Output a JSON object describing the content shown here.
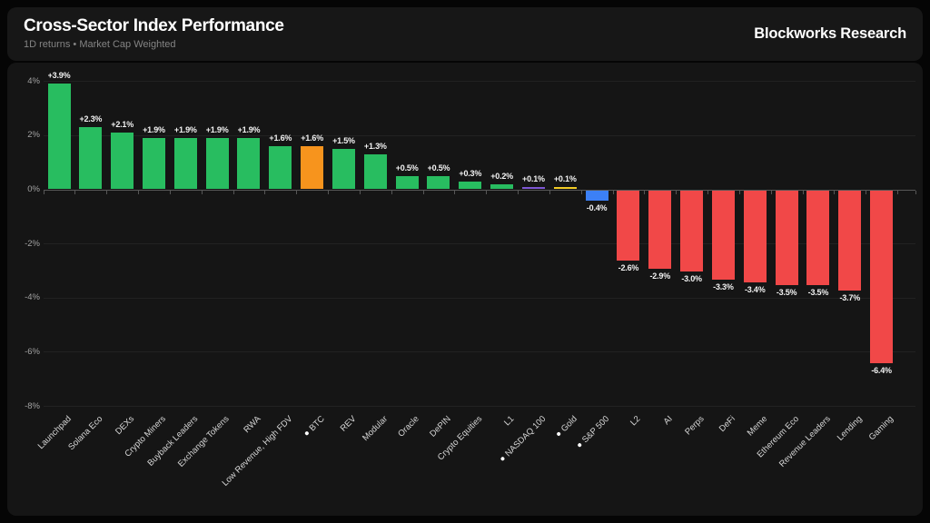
{
  "header": {
    "title": "Cross-Sector Index Performance",
    "subtitle": "1D returns • Market Cap Weighted",
    "brand": "Blockworks Research"
  },
  "colors": {
    "positive": "#28bd60",
    "negative": "#f14848",
    "btc": "#f7941d",
    "nasdaq100": "#7e57d4",
    "gold": "#f3cd26",
    "sp500": "#3c80f6",
    "page_background": "#050505",
    "panel_background": "#171717"
  },
  "chart_data": {
    "type": "bar",
    "title": "Cross-Sector Index Performance",
    "subtitle": "1D returns • Market Cap Weighted",
    "xlabel": "",
    "ylabel": "",
    "ylim": [
      -8,
      4
    ],
    "grid": true,
    "legend_position": "none",
    "yticks": [
      {
        "value": 4,
        "label": "4%"
      },
      {
        "value": 2,
        "label": "2%"
      },
      {
        "value": 0,
        "label": "0%"
      },
      {
        "value": -2,
        "label": "-2%"
      },
      {
        "value": -4,
        "label": "-4%"
      },
      {
        "value": -6,
        "label": "-6%"
      },
      {
        "value": -8,
        "label": "-8%"
      }
    ],
    "bars": [
      {
        "category": "Launchpad",
        "value": 3.9,
        "label": "+3.9%",
        "color": "#28bd60",
        "benchmark": false
      },
      {
        "category": "Solana Eco",
        "value": 2.3,
        "label": "+2.3%",
        "color": "#28bd60",
        "benchmark": false
      },
      {
        "category": "DEXs",
        "value": 2.1,
        "label": "+2.1%",
        "color": "#28bd60",
        "benchmark": false
      },
      {
        "category": "Crypto Miners",
        "value": 1.9,
        "label": "+1.9%",
        "color": "#28bd60",
        "benchmark": false
      },
      {
        "category": "Buyback Leaders",
        "value": 1.9,
        "label": "+1.9%",
        "color": "#28bd60",
        "benchmark": false
      },
      {
        "category": "Exchange Tokens",
        "value": 1.9,
        "label": "+1.9%",
        "color": "#28bd60",
        "benchmark": false
      },
      {
        "category": "RWA",
        "value": 1.9,
        "label": "+1.9%",
        "color": "#28bd60",
        "benchmark": false
      },
      {
        "category": "Low Revenue, High FDV",
        "value": 1.6,
        "label": "+1.6%",
        "color": "#28bd60",
        "benchmark": false
      },
      {
        "category": "BTC",
        "value": 1.6,
        "label": "+1.6%",
        "color": "#f7941d",
        "benchmark": true
      },
      {
        "category": "REV",
        "value": 1.5,
        "label": "+1.5%",
        "color": "#28bd60",
        "benchmark": false
      },
      {
        "category": "Modular",
        "value": 1.3,
        "label": "+1.3%",
        "color": "#28bd60",
        "benchmark": false
      },
      {
        "category": "Oracle",
        "value": 0.5,
        "label": "+0.5%",
        "color": "#28bd60",
        "benchmark": false
      },
      {
        "category": "DePIN",
        "value": 0.5,
        "label": "+0.5%",
        "color": "#28bd60",
        "benchmark": false
      },
      {
        "category": "Crypto Equities",
        "value": 0.3,
        "label": "+0.3%",
        "color": "#28bd60",
        "benchmark": false
      },
      {
        "category": "L1",
        "value": 0.2,
        "label": "+0.2%",
        "color": "#28bd60",
        "benchmark": false
      },
      {
        "category": "NASDAQ 100",
        "value": 0.1,
        "label": "+0.1%",
        "color": "#7e57d4",
        "benchmark": true
      },
      {
        "category": "Gold",
        "value": 0.1,
        "label": "+0.1%",
        "color": "#f3cd26",
        "benchmark": true
      },
      {
        "category": "S&P 500",
        "value": -0.4,
        "label": "-0.4%",
        "color": "#3c80f6",
        "benchmark": true
      },
      {
        "category": "L2",
        "value": -2.6,
        "label": "-2.6%",
        "color": "#f14848",
        "benchmark": false
      },
      {
        "category": "AI",
        "value": -2.9,
        "label": "-2.9%",
        "color": "#f14848",
        "benchmark": false
      },
      {
        "category": "Perps",
        "value": -3.0,
        "label": "-3.0%",
        "color": "#f14848",
        "benchmark": false
      },
      {
        "category": "DeFi",
        "value": -3.3,
        "label": "-3.3%",
        "color": "#f14848",
        "benchmark": false
      },
      {
        "category": "Meme",
        "value": -3.4,
        "label": "-3.4%",
        "color": "#f14848",
        "benchmark": false
      },
      {
        "category": "Ethereum Eco",
        "value": -3.5,
        "label": "-3.5%",
        "color": "#f14848",
        "benchmark": false
      },
      {
        "category": "Revenue Leaders",
        "value": -3.5,
        "label": "-3.5%",
        "color": "#f14848",
        "benchmark": false
      },
      {
        "category": "Lending",
        "value": -3.7,
        "label": "-3.7%",
        "color": "#f14848",
        "benchmark": false
      },
      {
        "category": "Gaming",
        "value": -6.4,
        "label": "-6.4%",
        "color": "#f14848",
        "benchmark": false
      }
    ]
  }
}
